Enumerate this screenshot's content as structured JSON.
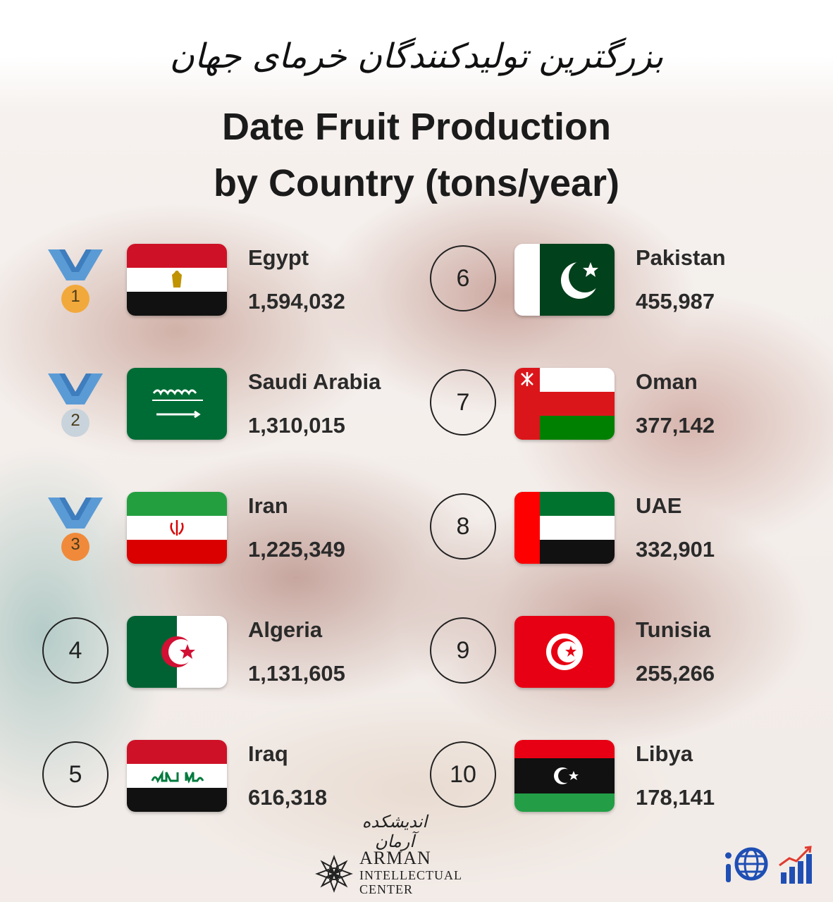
{
  "header": {
    "persian_title": "بزرگترین تولیدکنندگان خرمای جهان",
    "title_line1": "Date Fruit Production",
    "title_line2": "by Country (tons/year)"
  },
  "entries": [
    {
      "rank": "1",
      "country": "Egypt",
      "value": "1,594,032",
      "medal": "gold",
      "flag": "egypt-flag"
    },
    {
      "rank": "2",
      "country": "Saudi Arabia",
      "value": "1,310,015",
      "medal": "silver",
      "flag": "saudi-flag"
    },
    {
      "rank": "3",
      "country": "Iran",
      "value": "1,225,349",
      "medal": "bronze",
      "flag": "iran-flag"
    },
    {
      "rank": "4",
      "country": "Algeria",
      "value": "1,131,605",
      "flag": "algeria-flag"
    },
    {
      "rank": "5",
      "country": "Iraq",
      "value": "616,318",
      "flag": "iraq-flag"
    },
    {
      "rank": "6",
      "country": "Pakistan",
      "value": "455,987",
      "flag": "pakistan-flag"
    },
    {
      "rank": "7",
      "country": "Oman",
      "value": "377,142",
      "flag": "oman-flag"
    },
    {
      "rank": "8",
      "country": "UAE",
      "value": "332,901",
      "flag": "uae-flag"
    },
    {
      "rank": "9",
      "country": "Tunisia",
      "value": "255,266",
      "flag": "tunisia-flag"
    },
    {
      "rank": "10",
      "country": "Libya",
      "value": "178,141",
      "flag": "libya-flag"
    }
  ],
  "chart_data": {
    "type": "table",
    "title": "Date Fruit Production by Country (tons/year)",
    "categories": [
      "Egypt",
      "Saudi Arabia",
      "Iran",
      "Algeria",
      "Iraq",
      "Pakistan",
      "Oman",
      "UAE",
      "Tunisia",
      "Libya"
    ],
    "values": [
      1594032,
      1310015,
      1225349,
      1131605,
      616318,
      455987,
      377142,
      332901,
      255266,
      178141
    ]
  },
  "footer": {
    "persian_brand": "اندیشکده آرمان",
    "brand_line1": "ARMAN",
    "brand_line2": "INTELLECTUAL",
    "brand_line3": "CENTER"
  },
  "colors": {
    "medal_ribbon": "#5b9bd5",
    "gold": "#f2a93b",
    "silver": "#c9d3dc",
    "bronze": "#f08a3a"
  }
}
